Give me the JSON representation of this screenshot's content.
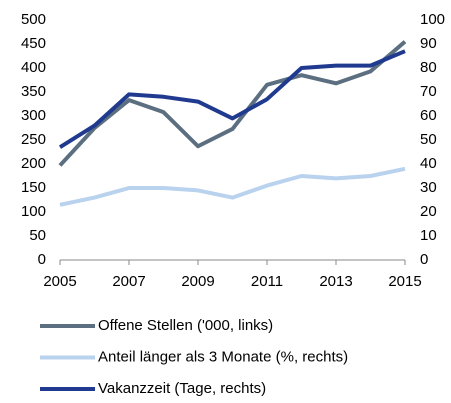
{
  "chart_data": {
    "type": "line",
    "x": [
      2005,
      2006,
      2007,
      2008,
      2009,
      2010,
      2011,
      2012,
      2013,
      2014,
      2015
    ],
    "xlim": [
      2005,
      2015
    ],
    "xticks": [
      2005,
      2007,
      2009,
      2011,
      2013,
      2015
    ],
    "ylim": [
      0,
      500
    ],
    "yticks": [
      0,
      50,
      100,
      150,
      200,
      250,
      300,
      350,
      400,
      450,
      500
    ],
    "y2lim": [
      0,
      100
    ],
    "y2ticks": [
      0,
      10,
      20,
      30,
      40,
      50,
      60,
      70,
      80,
      90,
      100
    ],
    "grid": false,
    "legend": "bottom",
    "series": [
      {
        "name": "Offene Stellen ('000, links)",
        "color": "#5b6f80",
        "values": [
          197,
          275,
          333,
          308,
          237,
          273,
          365,
          385,
          368,
          393,
          455
        ]
      },
      {
        "name": "Anteil länger als 3 Monate (%, rechts)",
        "color": "#b9d2ee",
        "axis": "y2",
        "values": [
          23,
          26,
          30,
          30,
          29,
          26,
          31,
          35,
          34,
          35,
          38
        ]
      },
      {
        "name": "Vakanzzeit (Tage, rechts)",
        "color": "#1f3a8f",
        "axis": "y2",
        "values": [
          47,
          56,
          69,
          68,
          66,
          59,
          67,
          80,
          81,
          81,
          87
        ]
      }
    ]
  }
}
